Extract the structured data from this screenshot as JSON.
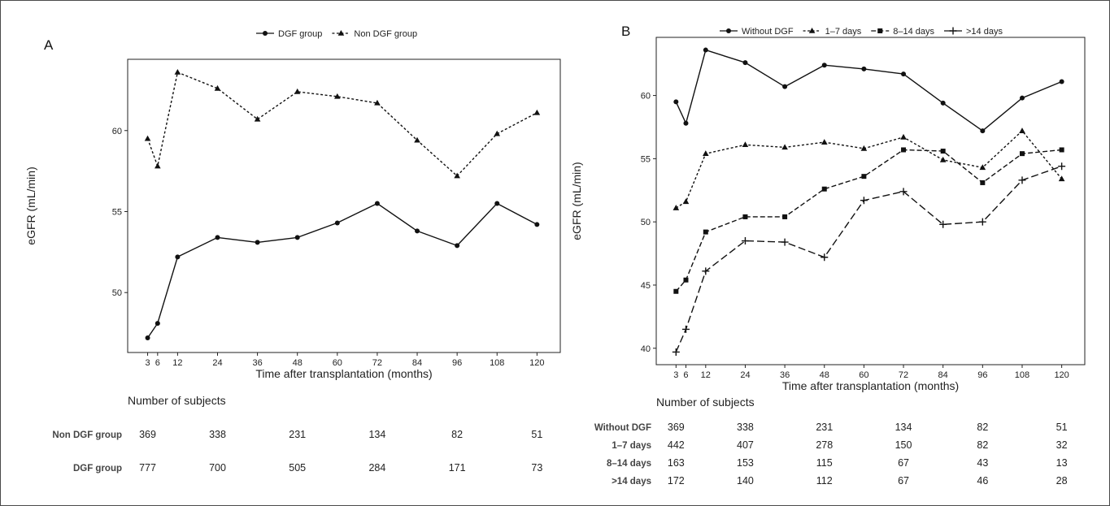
{
  "chart_data": [
    {
      "type": "line",
      "panel_label": "A",
      "xlabel": "Time after transplantation (months)",
      "ylabel": "eGFR (mL/min)",
      "x": [
        3,
        6,
        12,
        24,
        36,
        48,
        60,
        72,
        84,
        96,
        108,
        120
      ],
      "x_ticks": [
        3,
        6,
        12,
        24,
        36,
        48,
        60,
        72,
        84,
        96,
        108,
        120
      ],
      "y_ticks": [
        50,
        55,
        60
      ],
      "xlim": [
        -3,
        127
      ],
      "ylim": [
        46.3,
        64.4
      ],
      "legend_position": "top",
      "series": [
        {
          "name": "DGF group",
          "marker": "circle",
          "line": "solid",
          "values": [
            47.2,
            48.1,
            52.2,
            53.4,
            53.1,
            53.4,
            54.3,
            55.5,
            53.8,
            52.9,
            55.5,
            54.2
          ]
        },
        {
          "name": "Non DGF group",
          "marker": "triangle",
          "line": "dotted",
          "values": [
            59.5,
            57.8,
            63.6,
            62.6,
            60.7,
            62.4,
            62.1,
            61.7,
            59.4,
            57.2,
            59.8,
            61.1
          ]
        }
      ],
      "table": {
        "title": "Number of subjects",
        "columns_x": [
          3,
          24,
          48,
          72,
          96,
          120
        ],
        "rows": [
          {
            "label": "Non DGF group",
            "values": [
              "369",
              "338",
              "231",
              "134",
              "82",
              "51"
            ]
          },
          {
            "label": "DGF group",
            "values": [
              "777",
              "700",
              "505",
              "284",
              "171",
              "73"
            ]
          }
        ]
      }
    },
    {
      "type": "line",
      "panel_label": "B",
      "xlabel": "Time after transplantation (months)",
      "ylabel": "eGFR (mL/min)",
      "x": [
        3,
        6,
        12,
        24,
        36,
        48,
        60,
        72,
        84,
        96,
        108,
        120
      ],
      "x_ticks": [
        3,
        6,
        12,
        24,
        36,
        48,
        60,
        72,
        84,
        96,
        108,
        120
      ],
      "y_ticks": [
        40,
        45,
        50,
        55,
        60
      ],
      "xlim": [
        -3,
        127
      ],
      "ylim": [
        38.7,
        64.6
      ],
      "legend_position": "top",
      "series": [
        {
          "name": "Without DGF",
          "marker": "circle",
          "line": "solid",
          "values": [
            59.5,
            57.8,
            63.6,
            62.6,
            60.7,
            62.4,
            62.1,
            61.7,
            59.4,
            57.2,
            59.8,
            61.1
          ]
        },
        {
          "name": "1–7 days",
          "marker": "triangle",
          "line": "dotted",
          "values": [
            51.1,
            51.6,
            55.4,
            56.1,
            55.9,
            56.3,
            55.8,
            56.7,
            54.9,
            54.3,
            57.2,
            53.4
          ]
        },
        {
          "name": "8–14 days",
          "marker": "square",
          "line": "dashed",
          "values": [
            44.5,
            45.4,
            49.2,
            50.4,
            50.4,
            52.6,
            53.6,
            55.7,
            55.6,
            53.1,
            55.4,
            55.7
          ]
        },
        {
          "name": ">14 days",
          "marker": "plus",
          "line": "longdash",
          "values": [
            39.7,
            41.5,
            46.1,
            48.5,
            48.4,
            47.2,
            51.7,
            52.4,
            49.8,
            50.0,
            53.3,
            54.4
          ]
        }
      ],
      "table": {
        "title": "Number of subjects",
        "columns_x": [
          3,
          24,
          48,
          72,
          96,
          120
        ],
        "rows": [
          {
            "label": "Without DGF",
            "values": [
              "369",
              "338",
              "231",
              "134",
              "82",
              "51"
            ]
          },
          {
            "label": "1–7 days",
            "values": [
              "442",
              "407",
              "278",
              "150",
              "82",
              "32"
            ]
          },
          {
            "label": "8–14 days",
            "values": [
              "163",
              "153",
              "115",
              "67",
              "43",
              "13"
            ]
          },
          {
            "label": ">14 days",
            "values": [
              "172",
              "140",
              "112",
              "67",
              "46",
              "28"
            ]
          }
        ]
      }
    }
  ]
}
